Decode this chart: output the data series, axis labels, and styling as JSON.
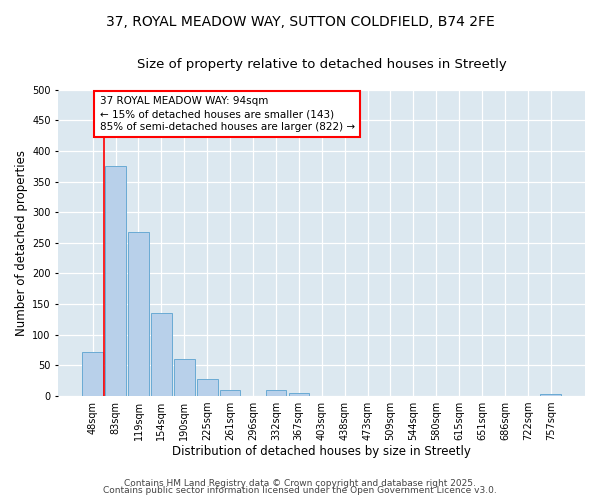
{
  "title_line1": "37, ROYAL MEADOW WAY, SUTTON COLDFIELD, B74 2FE",
  "title_line2": "Size of property relative to detached houses in Streetly",
  "xlabel": "Distribution of detached houses by size in Streetly",
  "ylabel": "Number of detached properties",
  "categories": [
    "48sqm",
    "83sqm",
    "119sqm",
    "154sqm",
    "190sqm",
    "225sqm",
    "261sqm",
    "296sqm",
    "332sqm",
    "367sqm",
    "403sqm",
    "438sqm",
    "473sqm",
    "509sqm",
    "544sqm",
    "580sqm",
    "615sqm",
    "651sqm",
    "686sqm",
    "722sqm",
    "757sqm"
  ],
  "values": [
    72,
    375,
    267,
    135,
    60,
    28,
    10,
    0,
    10,
    5,
    0,
    0,
    0,
    0,
    0,
    0,
    0,
    0,
    0,
    0,
    3
  ],
  "bar_color": "#b8d0ea",
  "bar_edgecolor": "#6aaad4",
  "red_line_index": 1,
  "annotation_text": "37 ROYAL MEADOW WAY: 94sqm\n← 15% of detached houses are smaller (143)\n85% of semi-detached houses are larger (822) →",
  "annotation_box_facecolor": "white",
  "annotation_box_edgecolor": "red",
  "ylim": [
    0,
    500
  ],
  "yticks": [
    0,
    50,
    100,
    150,
    200,
    250,
    300,
    350,
    400,
    450,
    500
  ],
  "bg_color": "#dce8f0",
  "footer_line1": "Contains HM Land Registry data © Crown copyright and database right 2025.",
  "footer_line2": "Contains public sector information licensed under the Open Government Licence v3.0.",
  "title_fontsize": 10,
  "subtitle_fontsize": 9.5,
  "axis_label_fontsize": 8.5,
  "tick_fontsize": 7,
  "annotation_fontsize": 7.5,
  "footer_fontsize": 6.5
}
